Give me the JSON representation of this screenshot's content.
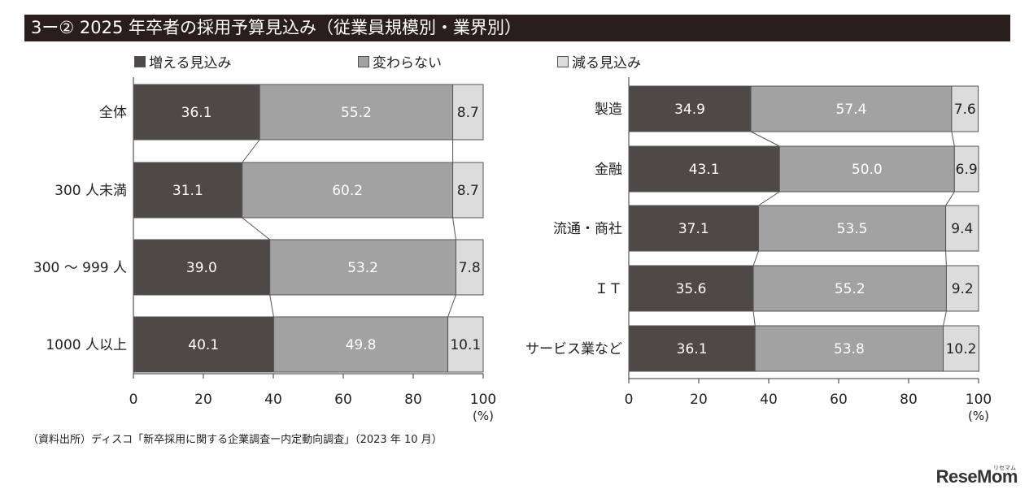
{
  "title": "3ー② 2025 年卒者の採用予算見込み（従業員規模別・業界別）",
  "legend": [
    {
      "label": "増える見込み",
      "color": "#4e4847"
    },
    {
      "label": "変わらない",
      "color": "#a2a2a2"
    },
    {
      "label": "減る見込み",
      "color": "#dcdcdc"
    }
  ],
  "chart_data": [
    {
      "type": "bar",
      "orientation": "horizontal",
      "stacked": true,
      "categories": [
        "全体",
        "300 人未満",
        "300 〜 999 人",
        "1000 人以上"
      ],
      "series": [
        {
          "name": "増える見込み",
          "values": [
            36.1,
            31.1,
            39.0,
            40.1
          ]
        },
        {
          "name": "変わらない",
          "values": [
            55.2,
            60.2,
            53.2,
            49.8
          ]
        },
        {
          "name": "減る見込み",
          "values": [
            8.7,
            8.7,
            7.8,
            10.1
          ]
        }
      ],
      "xlim": [
        0,
        100
      ],
      "xticks": [
        "0",
        "20",
        "40",
        "60",
        "80",
        "100"
      ],
      "xunit": "(%)"
    },
    {
      "type": "bar",
      "orientation": "horizontal",
      "stacked": true,
      "categories": [
        "製造",
        "金融",
        "流通・商社",
        "ＩＴ",
        "サービス業など"
      ],
      "series": [
        {
          "name": "増える見込み",
          "values": [
            34.9,
            43.1,
            37.1,
            35.6,
            36.1
          ]
        },
        {
          "name": "変わらない",
          "values": [
            57.4,
            50.0,
            53.5,
            55.2,
            53.8
          ]
        },
        {
          "name": "減る見込み",
          "values": [
            7.6,
            6.9,
            9.4,
            9.2,
            10.2
          ]
        }
      ],
      "xlim": [
        0,
        100
      ],
      "xticks": [
        "0",
        "20",
        "40",
        "60",
        "80",
        "100"
      ],
      "xunit": "(%)"
    }
  ],
  "source": "（資料出所）ディスコ「新卒採用に関する企業調査ー内定動向調査」（2023 年 10 月）",
  "logo": {
    "main": "ReseMom",
    "small": "リセマム"
  }
}
